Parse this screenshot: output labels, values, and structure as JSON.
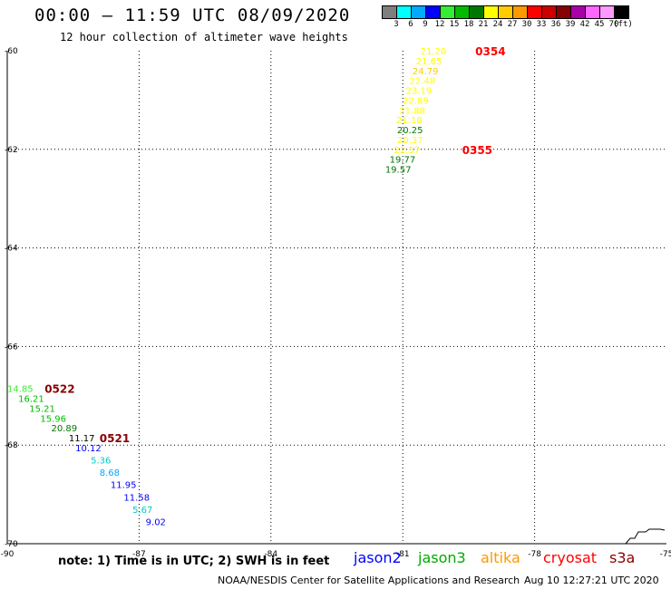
{
  "header": {
    "title": "00:00 – 11:59 UTC 08/09/2020",
    "subtitle": "12 hour collection of altimeter wave heights"
  },
  "color_scale": {
    "labels": [
      "3",
      "6",
      "9",
      "12",
      "15",
      "18",
      "21",
      "24",
      "27",
      "30",
      "33",
      "36",
      "39",
      "42",
      "45",
      "70",
      "(ft)"
    ],
    "colors": [
      "#7f7f7f",
      "#00ffff",
      "#00aaff",
      "#0000ff",
      "#33ee33",
      "#00bb00",
      "#007700",
      "#ffff00",
      "#ffcc00",
      "#ff9900",
      "#ff0000",
      "#cc0000",
      "#880000",
      "#aa00aa",
      "#ff66ff",
      "#ff99ff",
      "#000000"
    ]
  },
  "chart_data": {
    "type": "scatter",
    "xlim": [
      -90,
      -75
    ],
    "ylim": [
      -70,
      -60
    ],
    "x_ticks": [
      "-90",
      "-87",
      "-84",
      "-81",
      "-78",
      "-75"
    ],
    "y_ticks": [
      "-60",
      "-62",
      "-64",
      "-66",
      "-68",
      "-70"
    ],
    "grid": true,
    "labels": [
      {
        "text": "21.20",
        "lon": -80.6,
        "lat": -60.0,
        "color": "#ffff00"
      },
      {
        "text": "21.65",
        "lon": -80.7,
        "lat": -60.2,
        "color": "#ffff00"
      },
      {
        "text": "24.79",
        "lon": -80.78,
        "lat": -60.4,
        "color": "#ffcc00"
      },
      {
        "text": "22.48",
        "lon": -80.85,
        "lat": -60.6,
        "color": "#ffff00"
      },
      {
        "text": "23.19",
        "lon": -80.93,
        "lat": -60.8,
        "color": "#ffff00"
      },
      {
        "text": "22.89",
        "lon": -81.0,
        "lat": -61.0,
        "color": "#ffff00"
      },
      {
        "text": "21.88",
        "lon": -81.08,
        "lat": -61.2,
        "color": "#ffff00"
      },
      {
        "text": "21.18",
        "lon": -81.15,
        "lat": -61.4,
        "color": "#ffff00"
      },
      {
        "text": "20.25",
        "lon": -81.13,
        "lat": -61.6,
        "color": "#007700"
      },
      {
        "text": "20.37",
        "lon": -81.13,
        "lat": -61.8,
        "color": "#ffff00"
      },
      {
        "text": "22.57",
        "lon": -81.2,
        "lat": -62.0,
        "color": "#ffff00"
      },
      {
        "text": "19.77",
        "lon": -81.3,
        "lat": -62.2,
        "color": "#007700"
      },
      {
        "text": "19.57",
        "lon": -81.4,
        "lat": -62.4,
        "color": "#007700"
      },
      {
        "text": "14.85",
        "lon": -90.0,
        "lat": -66.85,
        "color": "#33ee33"
      },
      {
        "text": "16.21",
        "lon": -89.75,
        "lat": -67.05,
        "color": "#00bb00"
      },
      {
        "text": "15.21",
        "lon": -89.5,
        "lat": -67.25,
        "color": "#00bb00"
      },
      {
        "text": "15.96",
        "lon": -89.25,
        "lat": -67.45,
        "color": "#00bb00"
      },
      {
        "text": "20.89",
        "lon": -89.0,
        "lat": -67.65,
        "color": "#007700"
      },
      {
        "text": "11.17",
        "lon": -88.6,
        "lat": -67.85,
        "color": "#000000"
      },
      {
        "text": "10.12",
        "lon": -88.45,
        "lat": -68.05,
        "color": "#0000ff"
      },
      {
        "text": "5.36",
        "lon": -88.1,
        "lat": -68.3,
        "color": "#00cccc"
      },
      {
        "text": "8.68",
        "lon": -87.9,
        "lat": -68.55,
        "color": "#00aaff"
      },
      {
        "text": "11.95",
        "lon": -87.65,
        "lat": -68.8,
        "color": "#0000ff"
      },
      {
        "text": "11.58",
        "lon": -87.35,
        "lat": -69.05,
        "color": "#0000ff"
      },
      {
        "text": "5.67",
        "lon": -87.15,
        "lat": -69.3,
        "color": "#00cccc"
      },
      {
        "text": "9.02",
        "lon": -86.85,
        "lat": -69.55,
        "color": "#0000ff"
      }
    ],
    "time_labels": [
      {
        "text": "0354",
        "lon": -79.35,
        "lat": -60.0,
        "color": "#ff0000"
      },
      {
        "text": "0355",
        "lon": -79.65,
        "lat": -62.0,
        "color": "#ff0000"
      },
      {
        "text": "0522",
        "lon": -89.15,
        "lat": -66.85,
        "color": "#880000"
      },
      {
        "text": "0521",
        "lon": -87.9,
        "lat": -67.85,
        "color": "#880000"
      }
    ]
  },
  "footer": {
    "note": "note: 1) Time is in UTC; 2) SWH is in feet",
    "legend": [
      {
        "name": "jason2",
        "color": "#0000ff"
      },
      {
        "name": "jason3",
        "color": "#00aa00"
      },
      {
        "name": "altika",
        "color": "#ff9900"
      },
      {
        "name": "cryosat",
        "color": "#ff0000"
      },
      {
        "name": "s3a",
        "color": "#880000"
      }
    ],
    "credit": "NOAA/NESDIS Center for Satellite Applications and Research",
    "timestamp": "Aug 10 12:27:21 UTC 2020"
  }
}
